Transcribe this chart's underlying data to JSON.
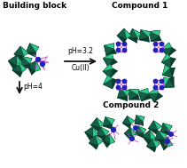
{
  "bg_color": "#ffffff",
  "teal_face": "#1a7a5e",
  "teal_highlight": "#2ecc8a",
  "teal_dark": "#0a3d2e",
  "teal_mid": "#155e47",
  "blue_node": "#2222bb",
  "pink_line": "#cc55cc",
  "arrow_color": "#111111",
  "title_bb": "Building block",
  "title_c1": "Compound 1",
  "title_c2": "Compound 2",
  "label_ph32": "pH=3.2",
  "label_cu": "Cu(II)",
  "label_ph4": "pH=4",
  "title_fontsize": 6.5,
  "label_fontsize": 5.5,
  "fig_width": 2.11,
  "fig_height": 1.89,
  "dpi": 100
}
